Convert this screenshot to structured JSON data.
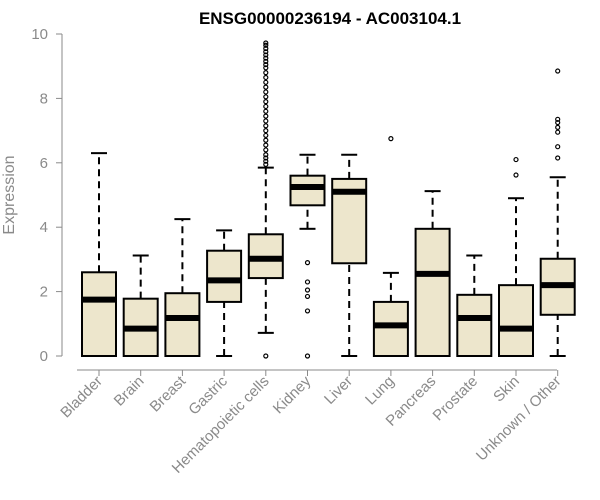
{
  "chart_data": {
    "type": "box",
    "title": "ENSG00000236194 - AC003104.1",
    "xlabel": "",
    "ylabel": "Expression",
    "ylim": [
      0,
      10
    ],
    "yticks": [
      0,
      2,
      4,
      6,
      8,
      10
    ],
    "grid": false,
    "legend": "none",
    "colors": {
      "box_fill": "#ede6cc",
      "box_stroke": "#000000",
      "median": "#000000",
      "axis": "#8a8a8a",
      "title": "#000000"
    },
    "categories": [
      "Bladder",
      "Brain",
      "Breast",
      "Gastric",
      "Hematopoietic cells",
      "Kidney",
      "Liver",
      "Lung",
      "Pancreas",
      "Prostate",
      "Skin",
      "Unknown / Other"
    ],
    "boxes": [
      {
        "min": 0,
        "q1": 0,
        "median": 1.75,
        "q3": 2.6,
        "max": 6.3,
        "outliers": []
      },
      {
        "min": 0,
        "q1": 0,
        "median": 0.85,
        "q3": 1.78,
        "max": 3.12,
        "outliers": []
      },
      {
        "min": 0,
        "q1": 0,
        "median": 1.18,
        "q3": 1.95,
        "max": 4.25,
        "outliers": []
      },
      {
        "min": 0,
        "q1": 1.68,
        "median": 2.35,
        "q3": 3.27,
        "max": 3.9,
        "outliers": []
      },
      {
        "min": 0.72,
        "q1": 2.42,
        "median": 3.02,
        "q3": 3.78,
        "max": 5.85,
        "outliers": [
          0,
          5.95,
          6.05,
          6.15,
          6.25,
          6.4,
          6.55,
          6.7,
          6.85,
          7.0,
          7.15,
          7.3,
          7.45,
          7.6,
          7.75,
          7.9,
          8.05,
          8.2,
          8.35,
          8.5,
          8.65,
          8.8,
          8.95,
          9.05,
          9.15,
          9.25,
          9.35,
          9.45,
          9.55,
          9.65,
          9.72
        ]
      },
      {
        "min": 3.95,
        "q1": 4.68,
        "median": 5.25,
        "q3": 5.6,
        "max": 6.25,
        "outliers": [
          0,
          1.4,
          1.85,
          2.05,
          2.3,
          2.9
        ]
      },
      {
        "min": 0,
        "q1": 2.88,
        "median": 5.1,
        "q3": 5.5,
        "max": 6.25,
        "outliers": []
      },
      {
        "min": 0,
        "q1": 0,
        "median": 0.95,
        "q3": 1.68,
        "max": 2.58,
        "outliers": [
          6.75
        ]
      },
      {
        "min": 0,
        "q1": 0,
        "median": 2.55,
        "q3": 3.95,
        "max": 5.12,
        "outliers": []
      },
      {
        "min": 0,
        "q1": 0,
        "median": 1.18,
        "q3": 1.9,
        "max": 3.12,
        "outliers": []
      },
      {
        "min": 0,
        "q1": 0,
        "median": 0.85,
        "q3": 2.2,
        "max": 4.9,
        "outliers": [
          5.62,
          6.1
        ]
      },
      {
        "min": 0,
        "q1": 1.28,
        "median": 2.2,
        "q3": 3.02,
        "max": 5.55,
        "outliers": [
          6.15,
          6.5,
          6.95,
          7.1,
          7.25,
          7.35,
          8.85
        ]
      }
    ]
  }
}
